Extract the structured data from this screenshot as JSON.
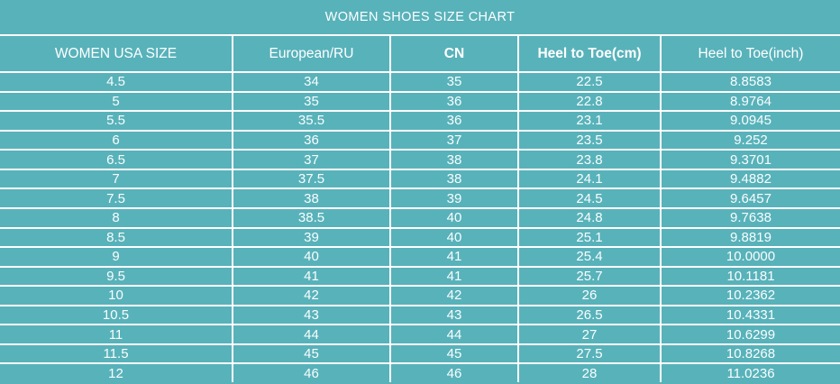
{
  "title": "WOMEN SHOES SIZE CHART",
  "colors": {
    "background_teal": "#58b2ba",
    "grid_line": "#ffffff",
    "text": "#ffffff"
  },
  "chart_data": {
    "type": "table",
    "title": "WOMEN SHOES SIZE CHART",
    "columns": [
      "WOMEN USA SIZE",
      "European/RU",
      "CN",
      "Heel to Toe(cm)",
      "Heel to Toe(inch)"
    ],
    "bold_columns": [
      "CN",
      "Heel to Toe(cm)"
    ],
    "rows": [
      [
        "4.5",
        "34",
        "35",
        "22.5",
        "8.8583"
      ],
      [
        "5",
        "35",
        "36",
        "22.8",
        "8.9764"
      ],
      [
        "5.5",
        "35.5",
        "36",
        "23.1",
        "9.0945"
      ],
      [
        "6",
        "36",
        "37",
        "23.5",
        "9.252"
      ],
      [
        "6.5",
        "37",
        "38",
        "23.8",
        "9.3701"
      ],
      [
        "7",
        "37.5",
        "38",
        "24.1",
        "9.4882"
      ],
      [
        "7.5",
        "38",
        "39",
        "24.5",
        "9.6457"
      ],
      [
        "8",
        "38.5",
        "40",
        "24.8",
        "9.7638"
      ],
      [
        "8.5",
        "39",
        "40",
        "25.1",
        "9.8819"
      ],
      [
        "9",
        "40",
        "41",
        "25.4",
        "10.0000"
      ],
      [
        "9.5",
        "41",
        "41",
        "25.7",
        "10.1181"
      ],
      [
        "10",
        "42",
        "42",
        "26",
        "10.2362"
      ],
      [
        "10.5",
        "43",
        "43",
        "26.5",
        "10.4331"
      ],
      [
        "11",
        "44",
        "44",
        "27",
        "10.6299"
      ],
      [
        "11.5",
        "45",
        "45",
        "27.5",
        "10.8268"
      ],
      [
        "12",
        "46",
        "46",
        "28",
        "11.0236"
      ]
    ],
    "layout": {
      "grid": true,
      "header_row": true,
      "title_position": "top-center"
    }
  }
}
